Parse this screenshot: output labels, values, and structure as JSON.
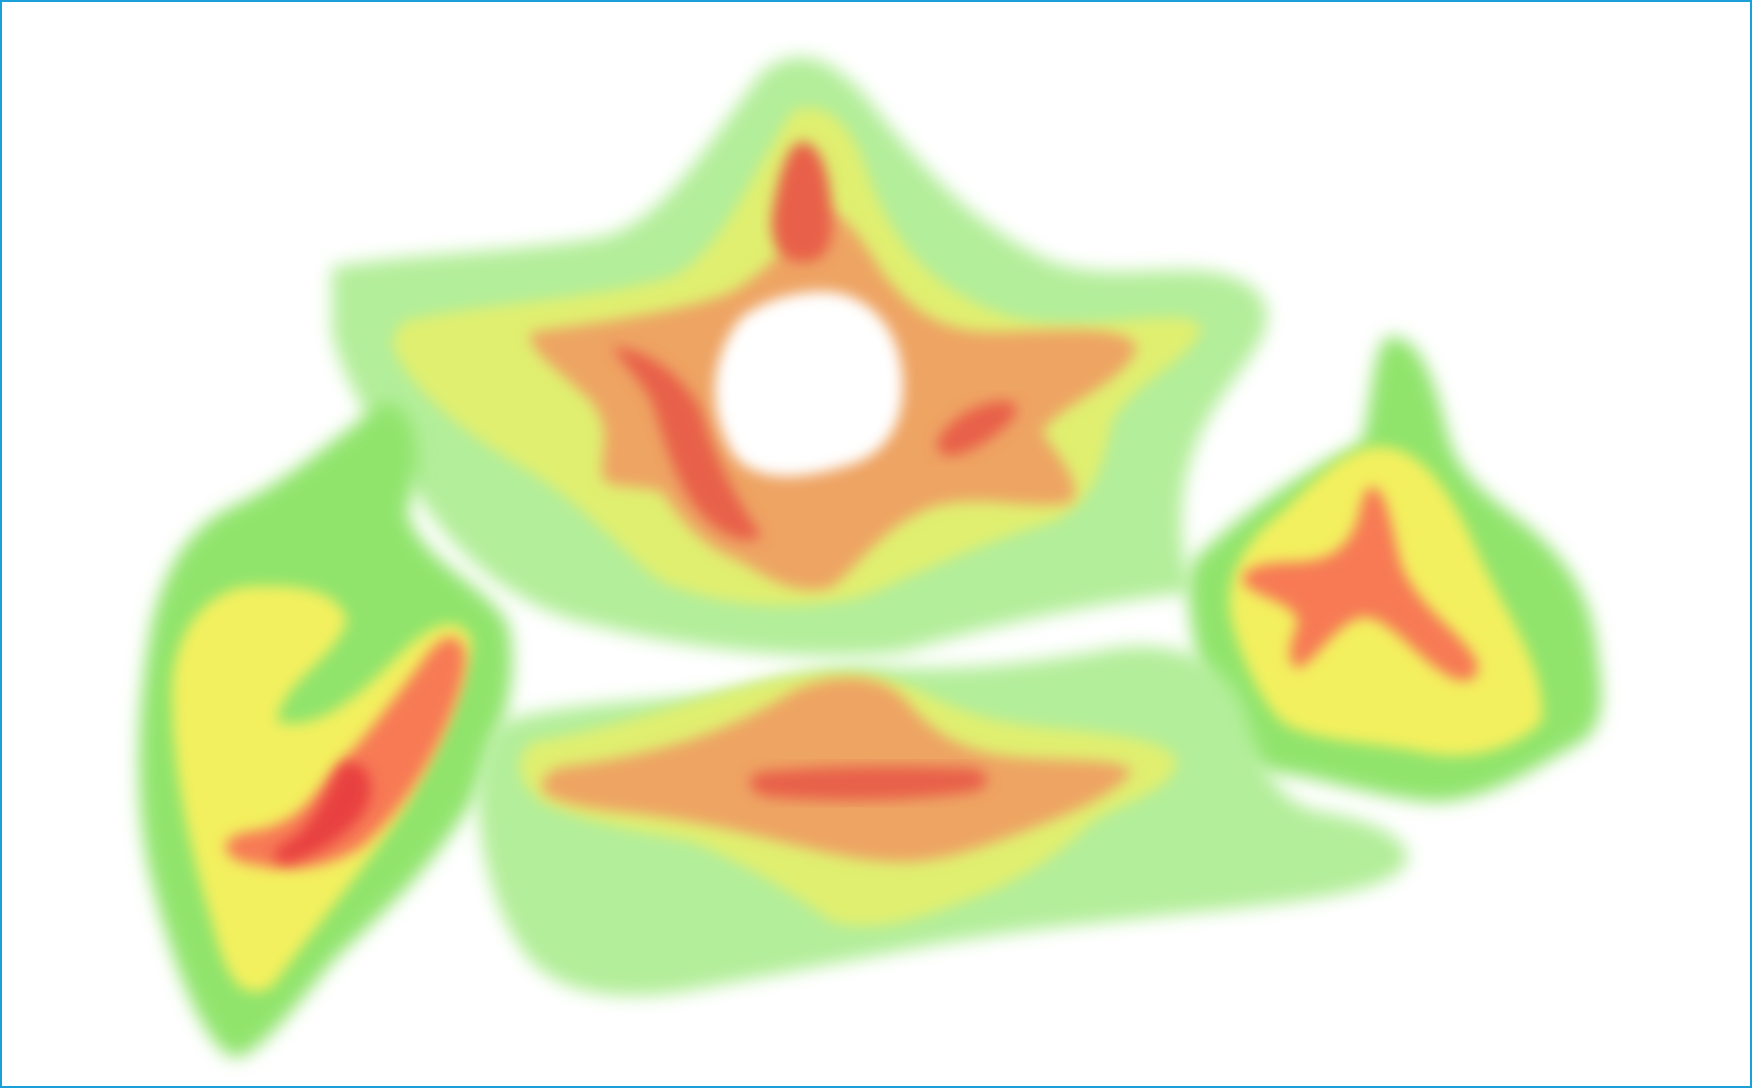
{
  "frame": {
    "border_color": "#1a9fd8",
    "background": "#ffffff"
  },
  "heatmap": {
    "colors": {
      "level_1": "#b3ee9a",
      "level_2": "#90e46c",
      "level_3": "#f3f05e",
      "level_4": "#e0ef70",
      "level_5": "#eea463",
      "level_6": "#f77a55",
      "level_7": "#e8604a",
      "level_8": "#e84040"
    }
  }
}
